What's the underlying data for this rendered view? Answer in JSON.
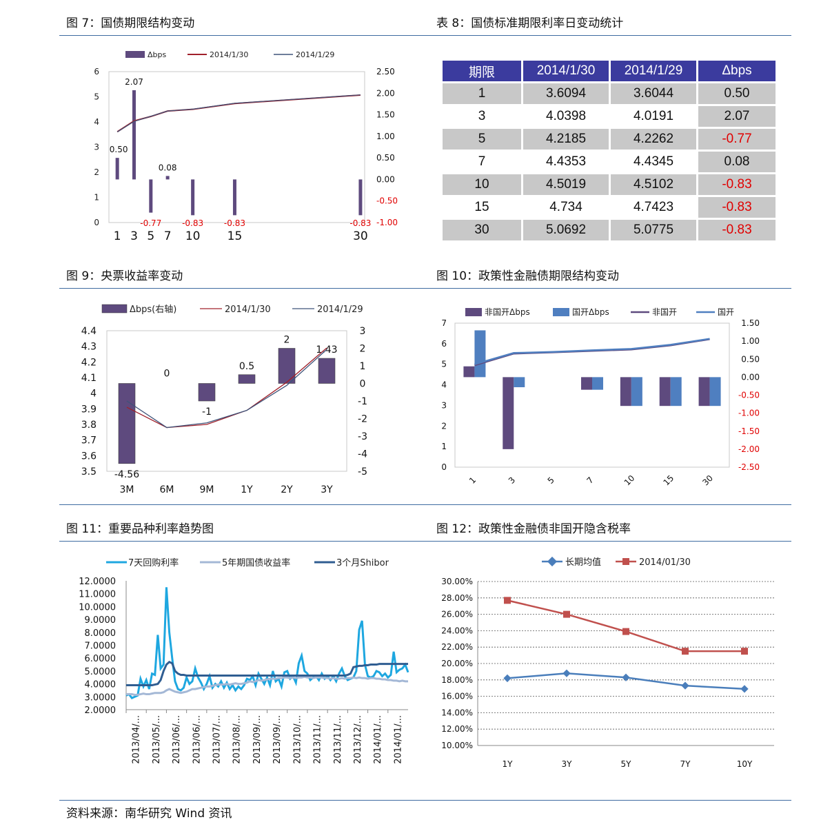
{
  "titles": {
    "fig7": "图 7：国债期限结构变动",
    "tbl8": "表 8：国债标准期限利率日变动统计",
    "fig9": "图 9：央票收益率变动",
    "fig10": "图 10：政策性金融债期限结构变动",
    "fig11": "图 11：重要品种利率趋势图",
    "fig12": "图 12：政策性金融债非国开隐含税率"
  },
  "footer": "资料来源：南华研究    Wind 资讯",
  "colors": {
    "bar": "#5e4a7e",
    "red": "#a0202a",
    "navy": "#3e5379",
    "blue": "#4f7fc0",
    "neg": "#e00000"
  },
  "table8": {
    "headers": [
      "期限",
      "2014/1/30",
      "2014/1/29",
      "Δbps"
    ],
    "rows": [
      [
        "1",
        "3.6094",
        "3.6044",
        "0.50"
      ],
      [
        "3",
        "4.0398",
        "4.0191",
        "2.07"
      ],
      [
        "5",
        "4.2185",
        "4.2262",
        "-0.77"
      ],
      [
        "7",
        "4.4353",
        "4.4345",
        "0.08"
      ],
      [
        "10",
        "4.5019",
        "4.5102",
        "-0.83"
      ],
      [
        "15",
        "4.734",
        "4.7423",
        "-0.83"
      ],
      [
        "30",
        "5.0692",
        "5.0775",
        "-0.83"
      ]
    ]
  },
  "chart_data": [
    {
      "id": "fig7",
      "type": "bar+line",
      "legend": [
        "Δbps",
        "2014/1/30",
        "2014/1/29"
      ],
      "categories": [
        "1",
        "3",
        "5",
        "7",
        "10",
        "15",
        "30"
      ],
      "x": [
        1,
        3,
        5,
        7,
        10,
        15,
        30
      ],
      "bar_values": [
        0.5,
        2.07,
        -0.77,
        0.08,
        -0.83,
        -0.83,
        -0.83
      ],
      "bar_labels": [
        "0.50",
        "2.07",
        "-0.77",
        "0.08",
        "-0.83",
        "-0.83",
        "-0.83"
      ],
      "series": [
        {
          "name": "2014/1/30",
          "values": [
            3.6094,
            4.0398,
            4.2185,
            4.4353,
            4.5019,
            4.734,
            5.0692
          ]
        },
        {
          "name": "2014/1/29",
          "values": [
            3.6044,
            4.0191,
            4.2262,
            4.4345,
            4.5102,
            4.7423,
            5.0775
          ]
        }
      ],
      "y_left_ticks": [
        "6",
        "5",
        "4",
        "3",
        "2",
        "1",
        "0"
      ],
      "y_right_ticks": [
        "2.50",
        "2.00",
        "1.50",
        "1.00",
        "0.50",
        "0.00",
        "-0.50",
        "-1.00"
      ],
      "x_ticks": [
        "1",
        "3",
        "5",
        "7",
        "10",
        "15",
        "30"
      ],
      "ylim_left": [
        0,
        6
      ],
      "ylim_right": [
        -1,
        2.5
      ]
    },
    {
      "id": "fig9",
      "type": "bar+line",
      "legend": [
        "Δbps(右轴)",
        "2014/1/30",
        "2014/1/29"
      ],
      "categories": [
        "3M",
        "6M",
        "9M",
        "1Y",
        "2Y",
        "3Y"
      ],
      "bar_values": [
        -4.56,
        0,
        -1,
        0.5,
        2,
        1.43
      ],
      "bar_labels": [
        "-4.56",
        "0",
        "-1",
        "0.5",
        "2",
        "1.43"
      ],
      "series": [
        {
          "name": "2014/1/30",
          "values": [
            3.91,
            3.78,
            3.8,
            3.89,
            4.07,
            4.29
          ]
        },
        {
          "name": "2014/1/29",
          "values": [
            3.95,
            3.78,
            3.81,
            3.89,
            4.05,
            4.28
          ]
        }
      ],
      "y_left_ticks": [
        "4.4",
        "4.3",
        "4.2",
        "4.1",
        "4",
        "3.9",
        "3.8",
        "3.7",
        "3.6",
        "3.5"
      ],
      "y_right_ticks": [
        "3",
        "2",
        "1",
        "0",
        "-1",
        "-2",
        "-3",
        "-4",
        "-5"
      ],
      "ylim_left": [
        3.5,
        4.4
      ],
      "ylim_right": [
        -5,
        3
      ]
    },
    {
      "id": "fig10",
      "type": "bar+line",
      "legend": [
        "非国开Δbps",
        "国开Δbps",
        "非国开",
        "国开"
      ],
      "categories": [
        "1",
        "3",
        "5",
        "7",
        "10",
        "15",
        "30"
      ],
      "bars": [
        {
          "name": "非国开Δbps",
          "values": [
            0.3,
            -2.0,
            0,
            -0.35,
            -0.8,
            -0.8,
            -0.8
          ]
        },
        {
          "name": "国开Δbps",
          "values": [
            1.3,
            -0.28,
            0,
            -0.35,
            -0.8,
            -0.8,
            -0.8
          ]
        }
      ],
      "series": [
        {
          "name": "非国开",
          "values": [
            4.95,
            5.52,
            5.58,
            5.65,
            5.72,
            5.92,
            6.22
          ]
        },
        {
          "name": "国开",
          "values": [
            5.0,
            5.55,
            5.6,
            5.68,
            5.75,
            5.95,
            6.24
          ]
        }
      ],
      "y_left_ticks": [
        "7",
        "6",
        "5",
        "4",
        "3",
        "2",
        "1",
        "0"
      ],
      "y_right_ticks": [
        "1.50",
        "1.00",
        "0.50",
        "0.00",
        "-0.50",
        "-1.00",
        "-1.50",
        "-2.00",
        "-2.50"
      ],
      "ylim_left": [
        0,
        7
      ],
      "ylim_right": [
        -2.5,
        1.5
      ]
    },
    {
      "id": "fig11",
      "type": "line",
      "legend": [
        "7天回购利率",
        "5年期国债收益率",
        "3个月Shibor"
      ],
      "x_ticks": [
        "2013/04/...",
        "2013/05/...",
        "2013/06/...",
        "2013/06/...",
        "2013/07/...",
        "2013/08/...",
        "2013/09/...",
        "2013/09/...",
        "2013/10/...",
        "2013/11/...",
        "2013/11/...",
        "2013/12/...",
        "2014/01/...",
        "2014/01/..."
      ],
      "series": [
        {
          "name": "7天回购利率",
          "values": [
            3.1,
            3.2,
            2.9,
            3.0,
            3.1,
            4.4,
            3.8,
            4.3,
            3.6,
            4.8,
            4.7,
            7.8,
            5.2,
            5.5,
            11.5,
            8.0,
            6.0,
            4.2,
            3.6,
            3.5,
            3.7,
            4.5,
            4.0,
            4.2,
            5.2,
            4.5,
            4.1,
            3.6,
            4.0,
            4.6,
            3.7,
            4.0,
            3.8,
            4.2,
            3.7,
            4.1,
            3.6,
            3.9,
            3.5,
            3.8,
            3.6,
            3.9,
            4.4,
            4.3,
            4.6,
            3.9,
            4.8,
            4.4,
            4.0,
            4.5,
            3.9,
            5.0,
            4.2,
            4.4,
            3.8,
            4.9,
            5.0,
            4.4,
            4.6,
            4.1,
            5.6,
            6.2,
            5.0,
            4.8,
            4.3,
            4.5,
            4.6,
            4.3,
            4.8,
            4.4,
            4.6,
            4.3,
            4.6,
            4.2,
            4.8,
            5.2,
            4.6,
            4.3,
            4.4,
            4.5,
            5.0,
            8.2,
            8.9,
            5.5,
            4.6,
            4.5,
            4.6,
            5.0,
            4.9,
            4.6,
            4.8,
            4.5,
            4.7,
            6.5,
            4.9,
            5.1,
            5.2,
            5.5,
            4.9
          ]
        },
        {
          "name": "5年期国债收益率",
          "values": [
            3.2,
            3.2,
            3.2,
            3.15,
            3.15,
            3.2,
            3.25,
            3.2,
            3.2,
            3.25,
            3.3,
            3.3,
            3.3,
            3.35,
            3.5,
            3.6,
            3.5,
            3.4,
            3.35,
            3.3,
            3.35,
            3.4,
            3.5,
            3.6,
            3.6,
            3.65,
            3.7,
            3.75,
            3.8,
            3.8,
            3.85,
            3.9,
            3.95,
            3.95,
            3.95,
            4.0,
            3.95,
            4.0,
            4.05,
            4.0,
            4.0,
            4.05,
            4.1,
            4.2,
            4.15,
            4.2,
            4.3,
            4.25,
            4.3,
            4.35,
            4.4,
            4.4,
            4.4,
            4.45,
            4.45,
            4.5,
            4.5,
            4.45,
            4.5,
            4.45,
            4.5,
            4.5,
            4.55,
            4.5,
            4.5,
            4.45,
            4.5,
            4.5,
            4.5,
            4.45,
            4.45,
            4.4,
            4.45,
            4.4,
            4.4,
            4.45,
            4.4,
            4.45,
            4.45,
            4.5,
            4.45,
            4.5,
            4.45,
            4.45,
            4.4,
            4.45,
            4.45,
            4.4,
            4.4,
            4.35,
            4.35,
            4.3,
            4.3,
            4.25,
            4.25,
            4.2,
            4.25,
            4.2,
            4.2
          ]
        },
        {
          "name": "3个月Shibor",
          "values": [
            3.9,
            3.9,
            3.9,
            3.9,
            3.9,
            3.9,
            3.9,
            3.9,
            3.9,
            3.9,
            3.95,
            4.0,
            4.3,
            5.0,
            5.5,
            5.7,
            5.6,
            5.0,
            4.8,
            4.7,
            4.7,
            4.65,
            4.65,
            4.65,
            4.65,
            4.65,
            4.65,
            4.65,
            4.65,
            4.65,
            4.65,
            4.65,
            4.65,
            4.65,
            4.65,
            4.65,
            4.65,
            4.65,
            4.65,
            4.65,
            4.65,
            4.65,
            4.65,
            4.65,
            4.65,
            4.65,
            4.65,
            4.65,
            4.65,
            4.65,
            4.65,
            4.65,
            4.65,
            4.65,
            4.65,
            4.65,
            4.65,
            4.65,
            4.65,
            4.65,
            4.65,
            4.65,
            4.65,
            4.65,
            4.65,
            4.65,
            4.65,
            4.65,
            4.65,
            4.65,
            4.65,
            4.65,
            4.65,
            4.65,
            4.65,
            4.65,
            4.65,
            4.7,
            4.8,
            5.3,
            5.35,
            5.4,
            5.4,
            5.45,
            5.45,
            5.5,
            5.5,
            5.5,
            5.55,
            5.55,
            5.55,
            5.55,
            5.55,
            5.55,
            5.55,
            5.55,
            5.55,
            5.55,
            5.55
          ]
        }
      ],
      "y_ticks": [
        "12.0000",
        "11.0000",
        "10.0000",
        "9.0000",
        "8.0000",
        "7.0000",
        "6.0000",
        "5.0000",
        "4.0000",
        "3.0000",
        "2.0000"
      ],
      "ylim": [
        2,
        12
      ]
    },
    {
      "id": "fig12",
      "type": "line",
      "legend": [
        "长期均值",
        "2014/01/30"
      ],
      "categories": [
        "1Y",
        "3Y",
        "5Y",
        "7Y",
        "10Y"
      ],
      "series": [
        {
          "name": "长期均值",
          "values": [
            18.2,
            18.8,
            18.3,
            17.3,
            16.9
          ]
        },
        {
          "name": "2014/01/30",
          "values": [
            27.7,
            26.0,
            23.9,
            21.5,
            21.5
          ]
        }
      ],
      "y_ticks": [
        "30.00%",
        "28.00%",
        "26.00%",
        "24.00%",
        "22.00%",
        "20.00%",
        "18.00%",
        "16.00%",
        "14.00%",
        "12.00%",
        "10.00%"
      ],
      "ylim": [
        10,
        30
      ]
    }
  ]
}
